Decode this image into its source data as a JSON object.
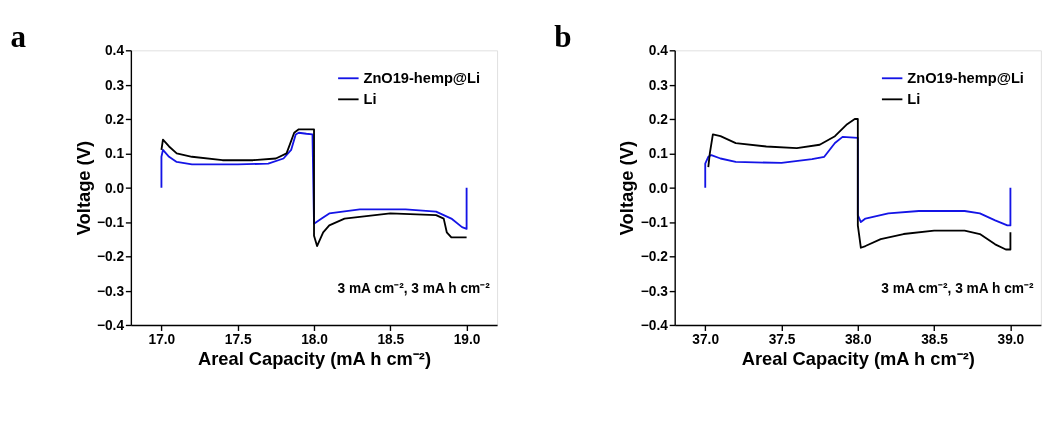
{
  "chart_data": [
    {
      "type": "line",
      "title": "a",
      "xlabel": "Areal Capacity (mA h cm⁻²)",
      "ylabel": "Voltage (V)",
      "annotations": [
        "3 mA cm⁻², 3 mA h cm⁻²"
      ],
      "legend": "top right",
      "grid": false,
      "marker": "none",
      "line_style": "solid",
      "xlim": [
        16.8,
        19.2
      ],
      "xticks": [
        {
          "value": 17,
          "label": "17.0"
        },
        17.5,
        {
          "value": 18,
          "label": "18.0"
        },
        18.5,
        {
          "value": 19,
          "label": "19.0"
        }
      ],
      "ylim": [
        -0.4,
        0.4
      ],
      "yticks": [
        -0.4,
        -0.3,
        -0.2,
        -0.1,
        {
          "value": 0,
          "label": "0.0"
        },
        0.1,
        0.2,
        0.3,
        0.4
      ],
      "series": [
        {
          "name": "ZnO19-hemp@Li",
          "color": "#1414e6",
          "x": [
            17.0,
            17.0,
            17.01,
            17.05,
            17.1,
            17.2,
            17.5,
            17.7,
            17.8,
            17.85,
            17.88,
            17.9,
            17.95,
            17.99,
            18.0,
            18.05,
            18.1,
            18.3,
            18.6,
            18.8,
            18.9,
            18.97,
            19.0,
            19.0
          ],
          "values": [
            0.0,
            0.09,
            0.11,
            0.09,
            0.075,
            0.068,
            0.068,
            0.07,
            0.085,
            0.11,
            0.155,
            0.16,
            0.157,
            0.155,
            -0.105,
            -0.09,
            -0.075,
            -0.063,
            -0.063,
            -0.07,
            -0.09,
            -0.115,
            -0.12,
            0.0
          ]
        },
        {
          "name": "Li",
          "color": "#000000",
          "x": [
            17.0,
            17.01,
            17.05,
            17.1,
            17.2,
            17.4,
            17.6,
            17.75,
            17.82,
            17.87,
            17.9,
            18.0,
            18.0,
            18.02,
            18.03,
            18.06,
            18.1,
            18.2,
            18.5,
            18.8,
            18.85,
            18.87,
            18.9,
            19.0
          ],
          "values": [
            0.11,
            0.14,
            0.12,
            0.1,
            0.09,
            0.08,
            0.08,
            0.085,
            0.1,
            0.16,
            0.17,
            0.17,
            -0.14,
            -0.17,
            -0.16,
            -0.13,
            -0.11,
            -0.09,
            -0.075,
            -0.08,
            -0.09,
            -0.13,
            -0.145,
            -0.145
          ]
        }
      ]
    },
    {
      "type": "line",
      "title": "b",
      "xlabel": "Areal Capacity (mA h cm⁻²)",
      "ylabel": "Voltage (V)",
      "annotations": [
        "3 mA cm⁻², 3 mA h cm⁻²"
      ],
      "legend": "top right",
      "grid": false,
      "marker": "none",
      "line_style": "solid",
      "xlim": [
        36.8,
        39.2
      ],
      "xticks": [
        {
          "value": 37,
          "label": "37.0"
        },
        37.5,
        {
          "value": 38,
          "label": "38.0"
        },
        38.5,
        {
          "value": 39,
          "label": "39.0"
        }
      ],
      "ylim": [
        -0.4,
        0.4
      ],
      "yticks": [
        -0.4,
        -0.3,
        -0.2,
        -0.1,
        {
          "value": 0,
          "label": "0.0"
        },
        0.1,
        0.2,
        0.3,
        0.4
      ],
      "series": [
        {
          "name": "ZnO19-hemp@Li",
          "color": "#1414e6",
          "x": [
            37.0,
            37.0,
            37.02,
            37.04,
            37.1,
            37.2,
            37.5,
            37.7,
            37.78,
            37.85,
            37.9,
            38.0,
            38.0,
            38.02,
            38.05,
            38.2,
            38.4,
            38.7,
            38.8,
            38.9,
            38.98,
            39.0,
            39.0
          ],
          "values": [
            0.0,
            0.07,
            0.09,
            0.095,
            0.085,
            0.075,
            0.072,
            0.083,
            0.09,
            0.13,
            0.148,
            0.145,
            -0.08,
            -0.1,
            -0.09,
            -0.075,
            -0.068,
            -0.068,
            -0.075,
            -0.095,
            -0.11,
            -0.11,
            0.0
          ]
        },
        {
          "name": "Li",
          "color": "#000000",
          "x": [
            37.02,
            37.03,
            37.05,
            37.1,
            37.2,
            37.4,
            37.6,
            37.75,
            37.85,
            37.93,
            37.98,
            38.0,
            38.0,
            38.02,
            38.05,
            38.15,
            38.3,
            38.5,
            38.7,
            38.8,
            38.9,
            38.97,
            39.0,
            39.0
          ],
          "values": [
            0.06,
            0.1,
            0.155,
            0.15,
            0.13,
            0.12,
            0.115,
            0.125,
            0.15,
            0.185,
            0.2,
            0.2,
            -0.11,
            -0.175,
            -0.17,
            -0.15,
            -0.135,
            -0.125,
            -0.125,
            -0.135,
            -0.165,
            -0.18,
            -0.18,
            -0.13
          ]
        }
      ]
    }
  ]
}
